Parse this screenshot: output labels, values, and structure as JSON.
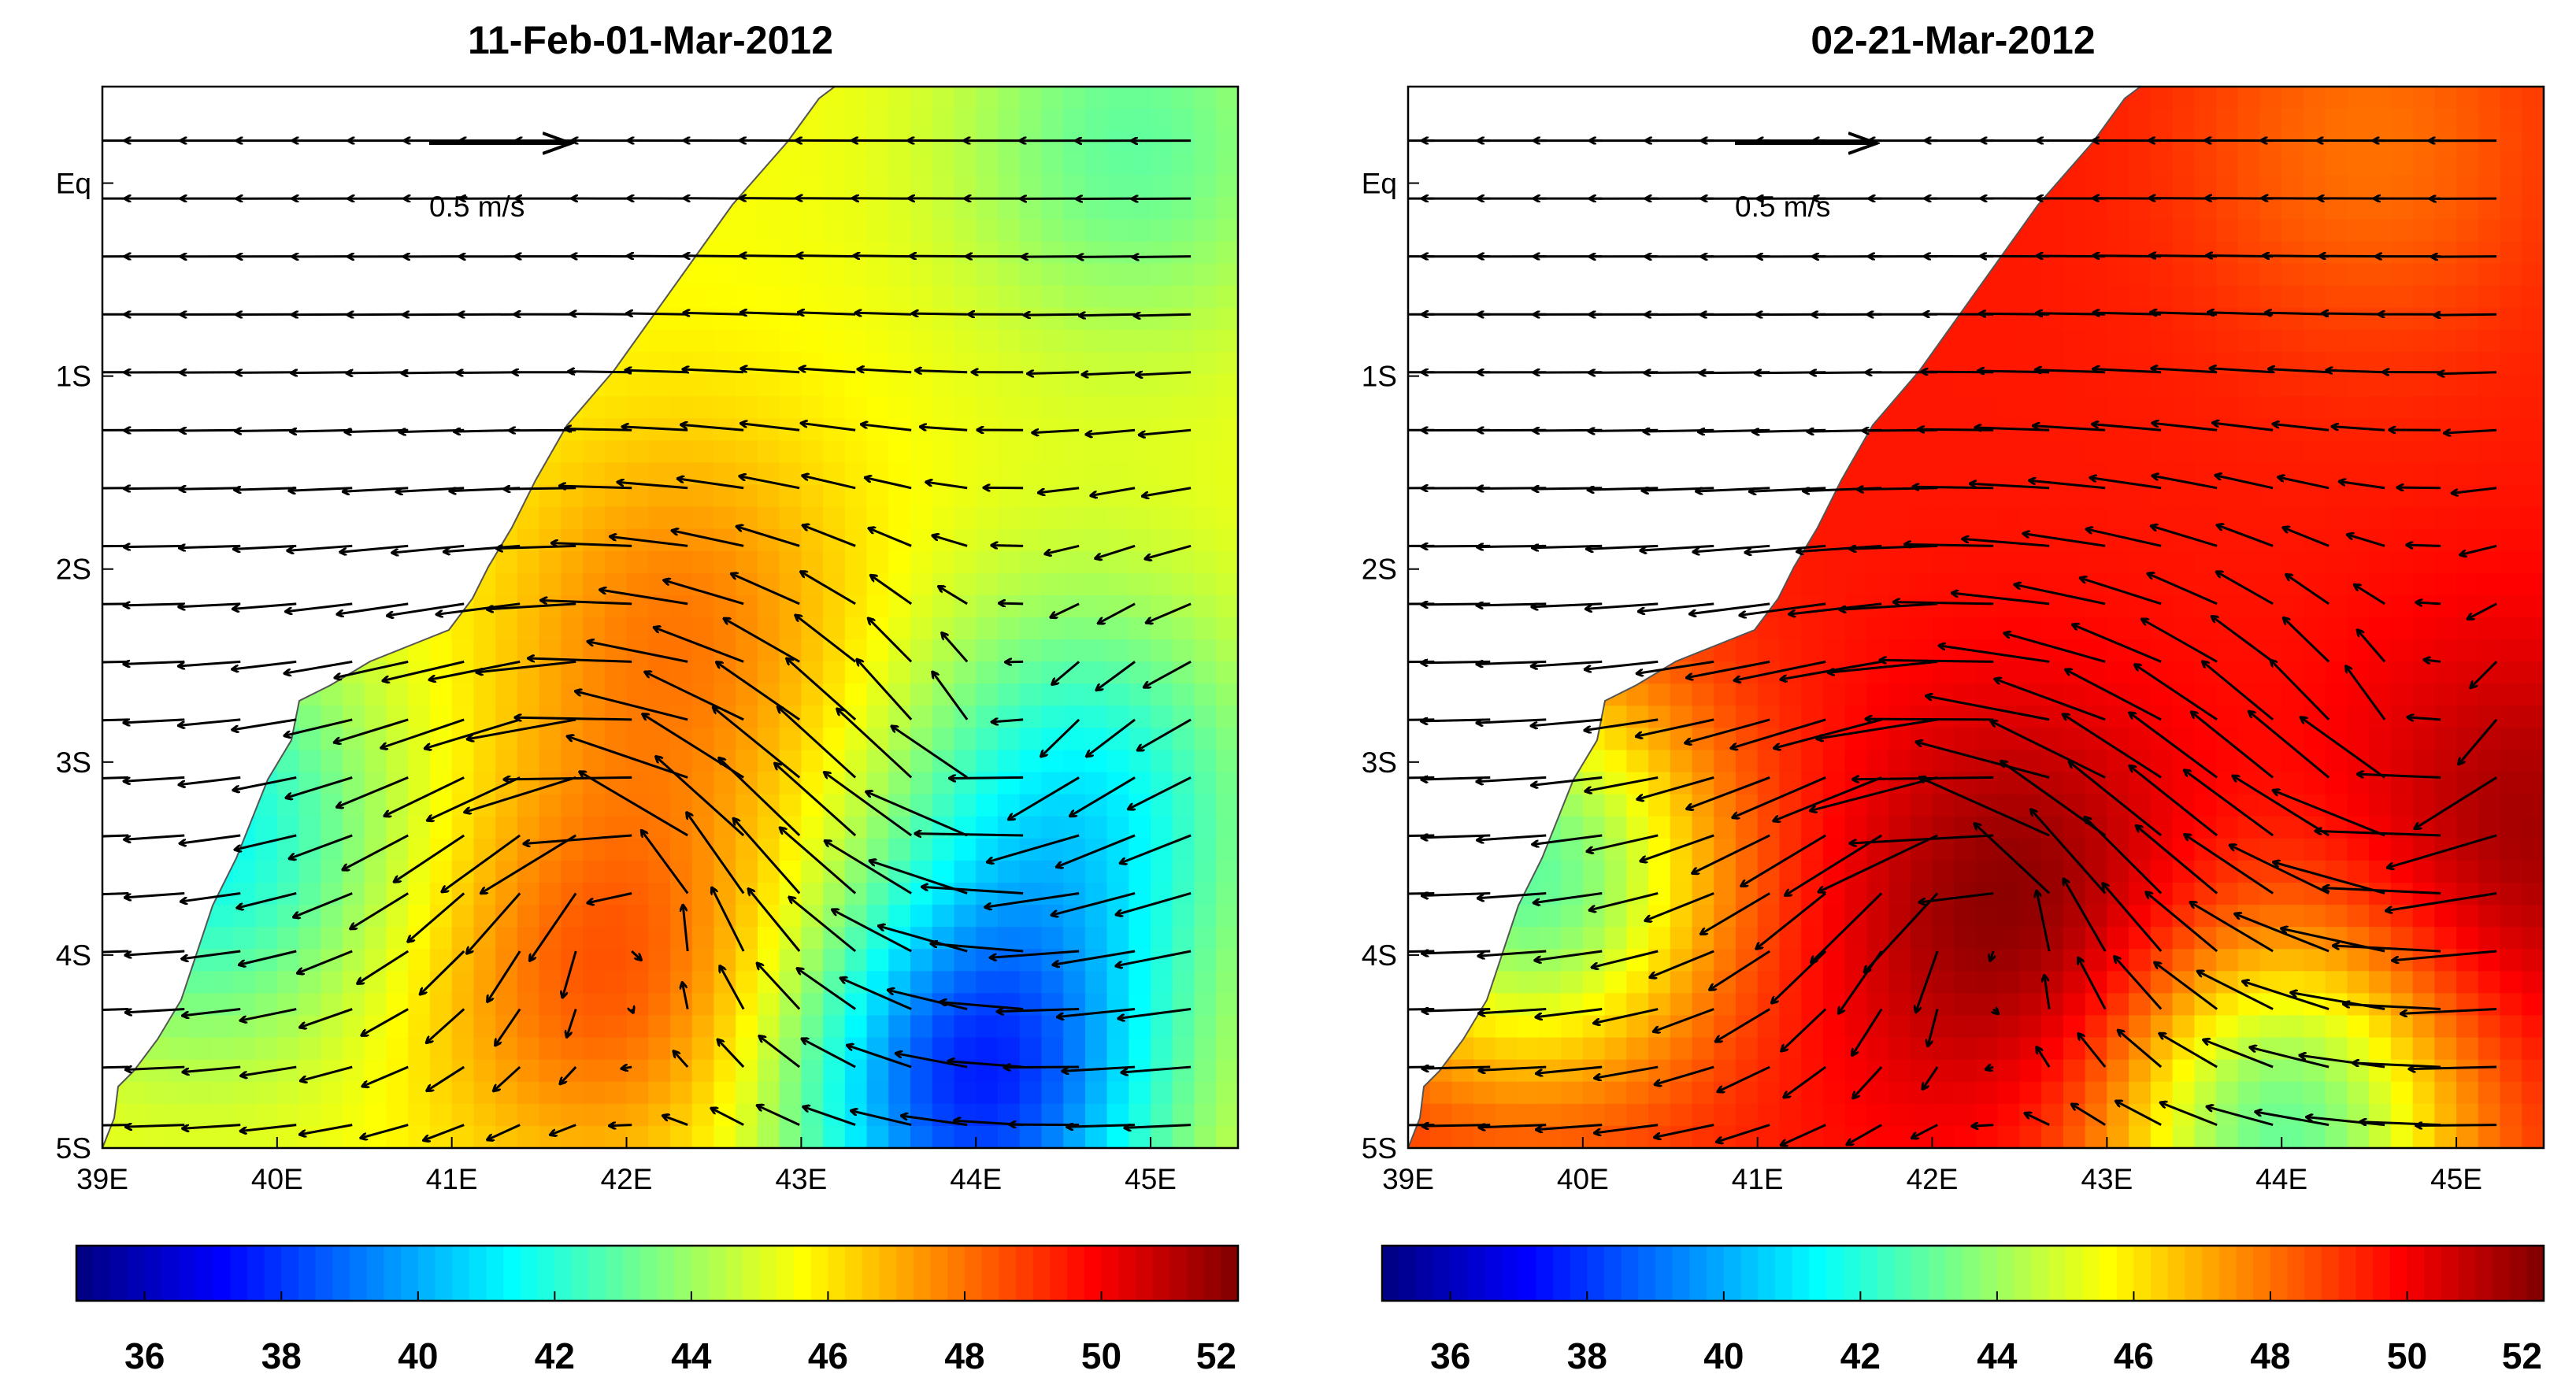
{
  "chart_data": [
    {
      "type": "heatmap",
      "title": "11-Feb-01-Mar-2012",
      "xlabel": "",
      "ylabel": "",
      "xlim": [
        39,
        45.5
      ],
      "ylim": [
        -5,
        0.5
      ],
      "xticks": [
        "39E",
        "40E",
        "41E",
        "42E",
        "43E",
        "44E",
        "45E"
      ],
      "yticks": [
        "Eq",
        "1S",
        "2S",
        "3S",
        "4S",
        "5S"
      ],
      "reference_vector": {
        "value": 0.5,
        "label": "0.5 m/s"
      },
      "colorbar": {
        "min": 35,
        "max": 52,
        "ticks": [
          "36",
          "38",
          "40",
          "42",
          "44",
          "46",
          "48",
          "50",
          "52"
        ],
        "colormap": "jet"
      },
      "field": {
        "background_value": 45.5,
        "blobs": [
          {
            "lon": 41.9,
            "lat": -4.1,
            "value": 48.5
          },
          {
            "lon": 42.3,
            "lat": -2.3,
            "value": 47.8
          },
          {
            "lon": 44.0,
            "lat": -4.7,
            "value": 38.0
          },
          {
            "lon": 44.6,
            "lat": -3.2,
            "value": 41.5
          },
          {
            "lon": 44.9,
            "lat": 0.2,
            "value": 43.0
          },
          {
            "lon": 39.6,
            "lat": -3.4,
            "value": 41.5
          }
        ]
      },
      "flow": {
        "eddies": [
          {
            "lon": 42.1,
            "lat": -3.6,
            "rotation": "anticlockwise",
            "strength": 0.45
          },
          {
            "lon": 44.2,
            "lat": -3.0,
            "rotation": "clockwise",
            "strength": 0.3
          }
        ],
        "mean_current": {
          "u": -0.35,
          "v": 0.0
        }
      }
    },
    {
      "type": "heatmap",
      "title": "02-21-Mar-2012",
      "xlabel": "",
      "ylabel": "",
      "xlim": [
        39,
        45.5
      ],
      "ylim": [
        -5,
        0.5
      ],
      "xticks": [
        "39E",
        "40E",
        "41E",
        "42E",
        "43E",
        "44E",
        "45E"
      ],
      "yticks": [
        "Eq",
        "1S",
        "2S",
        "3S",
        "4S",
        "5S"
      ],
      "reference_vector": {
        "value": 0.5,
        "label": "0.5 m/s"
      },
      "colorbar": {
        "min": 35,
        "max": 52,
        "ticks": [
          "36",
          "38",
          "40",
          "42",
          "44",
          "46",
          "48",
          "50",
          "52"
        ],
        "colormap": "jet"
      },
      "field": {
        "background_value": 49.5,
        "blobs": [
          {
            "lon": 42.5,
            "lat": -3.8,
            "value": 52.0
          },
          {
            "lon": 45.4,
            "lat": -3.4,
            "value": 51.5
          },
          {
            "lon": 44.0,
            "lat": -4.9,
            "value": 43.0
          },
          {
            "lon": 39.7,
            "lat": -3.6,
            "value": 43.0
          },
          {
            "lon": 44.5,
            "lat": 0.2,
            "value": 48.0
          }
        ]
      },
      "flow": {
        "eddies": [
          {
            "lon": 42.4,
            "lat": -3.7,
            "rotation": "anticlockwise",
            "strength": 0.5
          },
          {
            "lon": 44.9,
            "lat": -3.0,
            "rotation": "clockwise",
            "strength": 0.35
          }
        ],
        "mean_current": {
          "u": -0.4,
          "v": 0.0
        }
      }
    }
  ]
}
